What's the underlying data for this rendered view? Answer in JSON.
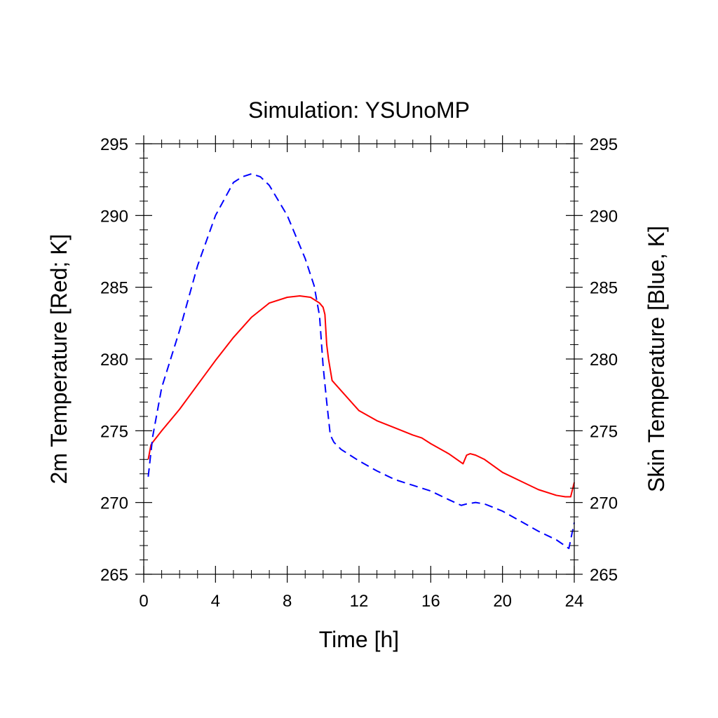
{
  "chart_data": {
    "type": "line",
    "title": "Simulation: YSUnoMP",
    "xlabel": "Time [h]",
    "ylabel_left": "2m Temperature [Red; K]",
    "ylabel_right": "Skin Temperature [Blue, K]",
    "xlim": [
      0,
      24
    ],
    "ylim": [
      265,
      295
    ],
    "x_ticks": [
      0,
      4,
      8,
      12,
      16,
      20,
      24
    ],
    "x_tick_labels": [
      "0",
      "4",
      "8",
      "12",
      "16",
      "20",
      "24"
    ],
    "y_ticks": [
      265,
      270,
      275,
      280,
      285,
      290,
      295
    ],
    "y_tick_labels": [
      "265",
      "270",
      "275",
      "280",
      "285",
      "290",
      "295"
    ],
    "grid": false,
    "legend": "none",
    "series": [
      {
        "axis": "left",
        "color": "#ff0000",
        "style": "solid",
        "x": [
          0.25,
          0.4,
          0.5,
          1,
          2,
          3,
          4,
          5,
          6,
          7,
          8,
          8.7,
          9.3,
          9.8,
          10.0,
          10.1,
          10.2,
          10.3,
          10.5,
          11,
          12,
          13,
          14,
          15,
          15.5,
          16,
          17,
          17.8,
          18.0,
          18.2,
          18.5,
          19,
          20,
          21,
          22,
          23,
          23.5,
          23.8,
          24.0
        ],
        "y": [
          273.0,
          274.0,
          274.2,
          275.0,
          276.5,
          278.2,
          279.9,
          281.5,
          282.9,
          283.9,
          284.3,
          284.4,
          284.3,
          283.9,
          283.6,
          283.1,
          281.0,
          280.0,
          278.5,
          277.8,
          276.4,
          275.7,
          275.2,
          274.7,
          274.5,
          274.1,
          273.4,
          272.7,
          273.3,
          273.4,
          273.3,
          273.0,
          272.1,
          271.5,
          270.9,
          270.5,
          270.4,
          270.4,
          271.4
        ]
      },
      {
        "axis": "right",
        "color": "#0000ff",
        "style": "dashed",
        "x": [
          0.25,
          0.5,
          1,
          2,
          3,
          4,
          5,
          5.5,
          6,
          6.5,
          7,
          8,
          9,
          9.5,
          9.8,
          10.0,
          10.2,
          10.4,
          10.6,
          11,
          12,
          13,
          14,
          15,
          16,
          17,
          17.7,
          18.0,
          18.5,
          19,
          20,
          21,
          22,
          23,
          23.7,
          24.0
        ],
        "y": [
          271.8,
          274.6,
          278.0,
          282.0,
          286.5,
          290.0,
          292.3,
          292.7,
          292.9,
          292.7,
          292.1,
          290.0,
          287.0,
          285.1,
          283.0,
          279.5,
          277.0,
          274.7,
          274.2,
          273.7,
          272.9,
          272.2,
          271.6,
          271.2,
          270.8,
          270.2,
          269.8,
          269.9,
          270.0,
          269.9,
          269.4,
          268.7,
          268.0,
          267.4,
          266.8,
          268.6
        ]
      }
    ]
  }
}
